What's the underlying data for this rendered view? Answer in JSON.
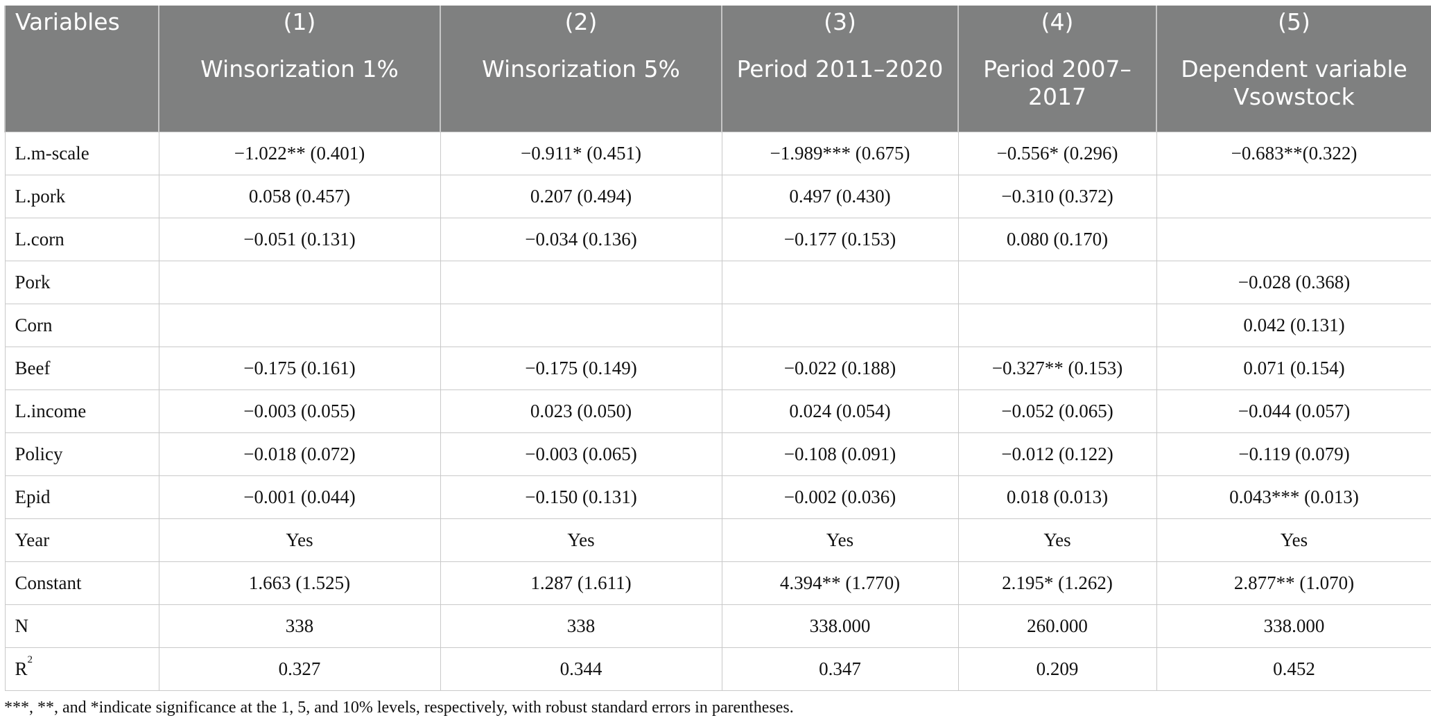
{
  "table": {
    "header_var": "Variables",
    "columns": [
      {
        "num": "(1)",
        "label": "Winsorization 1%"
      },
      {
        "num": "(2)",
        "label": "Winsorization 5%"
      },
      {
        "num": "(3)",
        "label": "Period 2011–2020"
      },
      {
        "num": "(4)",
        "label": "Period 2007–2017"
      },
      {
        "num": "(5)",
        "label": "Dependent variable Vsowstock"
      }
    ],
    "rows": [
      {
        "name": "L.m-scale",
        "cells": [
          "−1.022** (0.401)",
          "−0.911* (0.451)",
          "−1.989*** (0.675)",
          "−0.556* (0.296)",
          "−0.683**(0.322)"
        ]
      },
      {
        "name": "L.pork",
        "cells": [
          "0.058 (0.457)",
          "0.207 (0.494)",
          "0.497 (0.430)",
          "−0.310 (0.372)",
          ""
        ]
      },
      {
        "name": "L.corn",
        "cells": [
          "−0.051 (0.131)",
          "−0.034 (0.136)",
          "−0.177 (0.153)",
          "0.080 (0.170)",
          ""
        ]
      },
      {
        "name": "Pork",
        "cells": [
          "",
          "",
          "",
          "",
          "−0.028 (0.368)"
        ]
      },
      {
        "name": "Corn",
        "cells": [
          "",
          "",
          "",
          "",
          "0.042 (0.131)"
        ]
      },
      {
        "name": "Beef",
        "cells": [
          "−0.175 (0.161)",
          "−0.175 (0.149)",
          "−0.022 (0.188)",
          "−0.327** (0.153)",
          "0.071 (0.154)"
        ]
      },
      {
        "name": "L.income",
        "cells": [
          "−0.003 (0.055)",
          "0.023 (0.050)",
          "0.024 (0.054)",
          "−0.052 (0.065)",
          "−0.044 (0.057)"
        ]
      },
      {
        "name": "Policy",
        "cells": [
          "−0.018 (0.072)",
          "−0.003 (0.065)",
          "−0.108 (0.091)",
          "−0.012 (0.122)",
          "−0.119 (0.079)"
        ]
      },
      {
        "name": "Epid",
        "cells": [
          "−0.001 (0.044)",
          "−0.150 (0.131)",
          "−0.002 (0.036)",
          "0.018 (0.013)",
          "0.043*** (0.013)"
        ]
      },
      {
        "name": "Year",
        "cells": [
          "Yes",
          "Yes",
          "Yes",
          "Yes",
          "Yes"
        ]
      },
      {
        "name": "Constant",
        "cells": [
          "1.663 (1.525)",
          "1.287 (1.611)",
          "4.394** (1.770)",
          "2.195* (1.262)",
          "2.877** (1.070)"
        ]
      },
      {
        "name": "N",
        "cells": [
          "338",
          "338",
          "338.000",
          "260.000",
          "338.000"
        ]
      },
      {
        "name": "R",
        "sup": "2",
        "cells": [
          "0.327",
          "0.344",
          "0.347",
          "0.209",
          "0.452"
        ]
      }
    ]
  },
  "note": "***, **, and *indicate significance at the 1, 5, and 10% levels, respectively, with robust standard errors in parentheses."
}
